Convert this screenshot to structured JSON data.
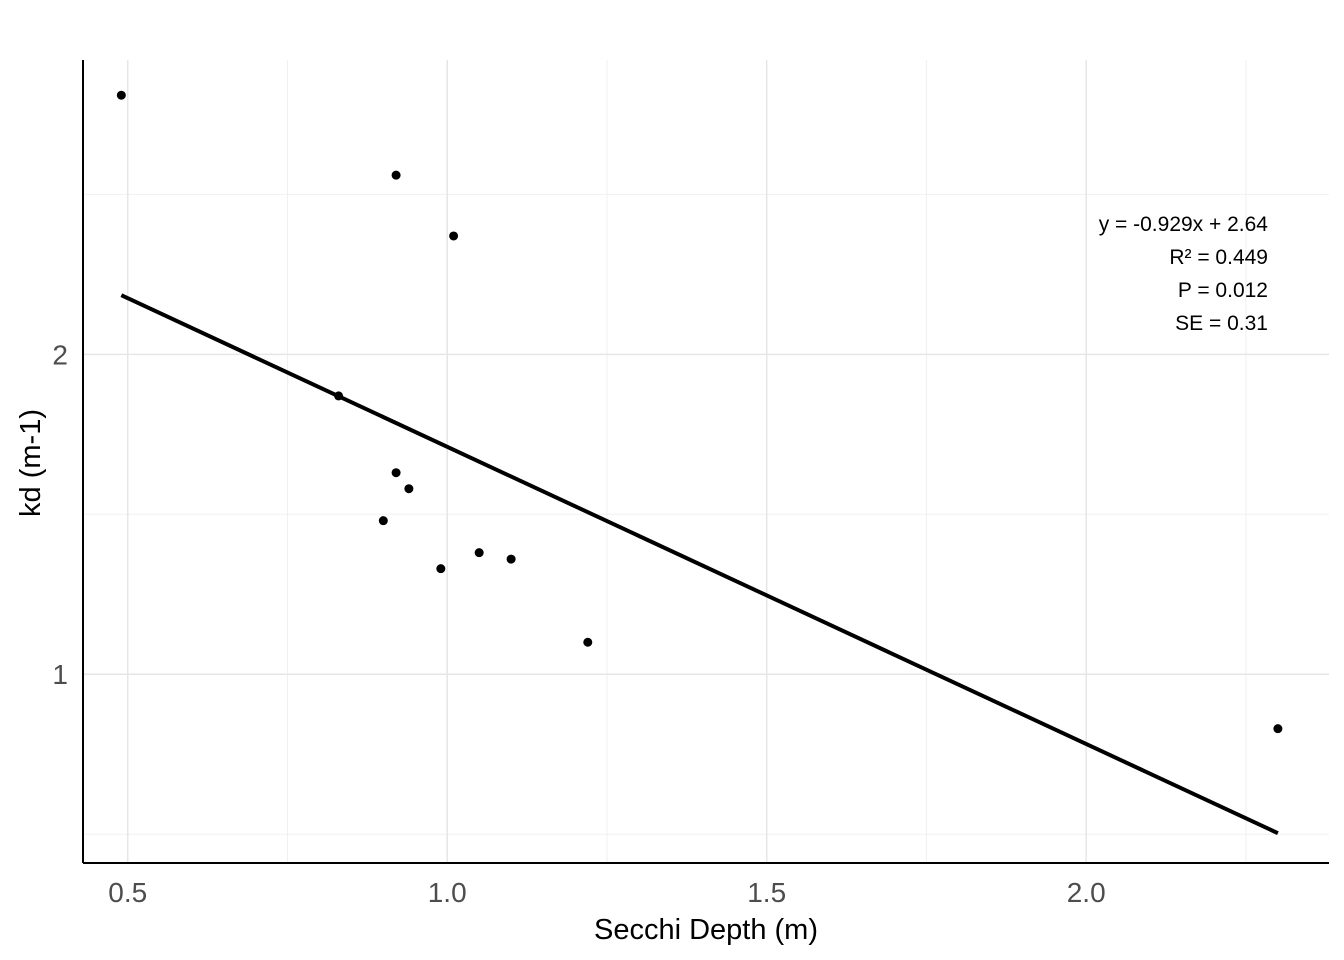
{
  "chart_data": {
    "type": "scatter",
    "xlabel": "Secchi Depth (m)",
    "ylabel": "kd (m-1)",
    "xlim": [
      0.43,
      2.38
    ],
    "ylim": [
      0.41,
      2.92
    ],
    "x_ticks": [
      0.5,
      1.0,
      1.5,
      2.0
    ],
    "x_tick_labels": [
      "0.5",
      "1.0",
      "1.5",
      "2.0"
    ],
    "y_ticks": [
      1,
      2
    ],
    "y_tick_labels": [
      "1",
      "2"
    ],
    "grid": true,
    "points": [
      {
        "x": 0.49,
        "y": 2.81
      },
      {
        "x": 0.92,
        "y": 2.56
      },
      {
        "x": 1.01,
        "y": 2.37
      },
      {
        "x": 0.83,
        "y": 1.87
      },
      {
        "x": 0.92,
        "y": 1.63
      },
      {
        "x": 0.94,
        "y": 1.58
      },
      {
        "x": 0.9,
        "y": 1.48
      },
      {
        "x": 1.05,
        "y": 1.38
      },
      {
        "x": 1.1,
        "y": 1.36
      },
      {
        "x": 0.99,
        "y": 1.33
      },
      {
        "x": 1.22,
        "y": 1.1
      },
      {
        "x": 2.3,
        "y": 0.83
      }
    ],
    "trendline": {
      "slope": -0.929,
      "intercept": 2.64,
      "x_start": 0.49,
      "x_end": 2.3
    },
    "annotations": [
      "y = -0.929x + 2.64",
      "R² = 0.449",
      "P = 0.012",
      "SE = 0.31"
    ]
  }
}
